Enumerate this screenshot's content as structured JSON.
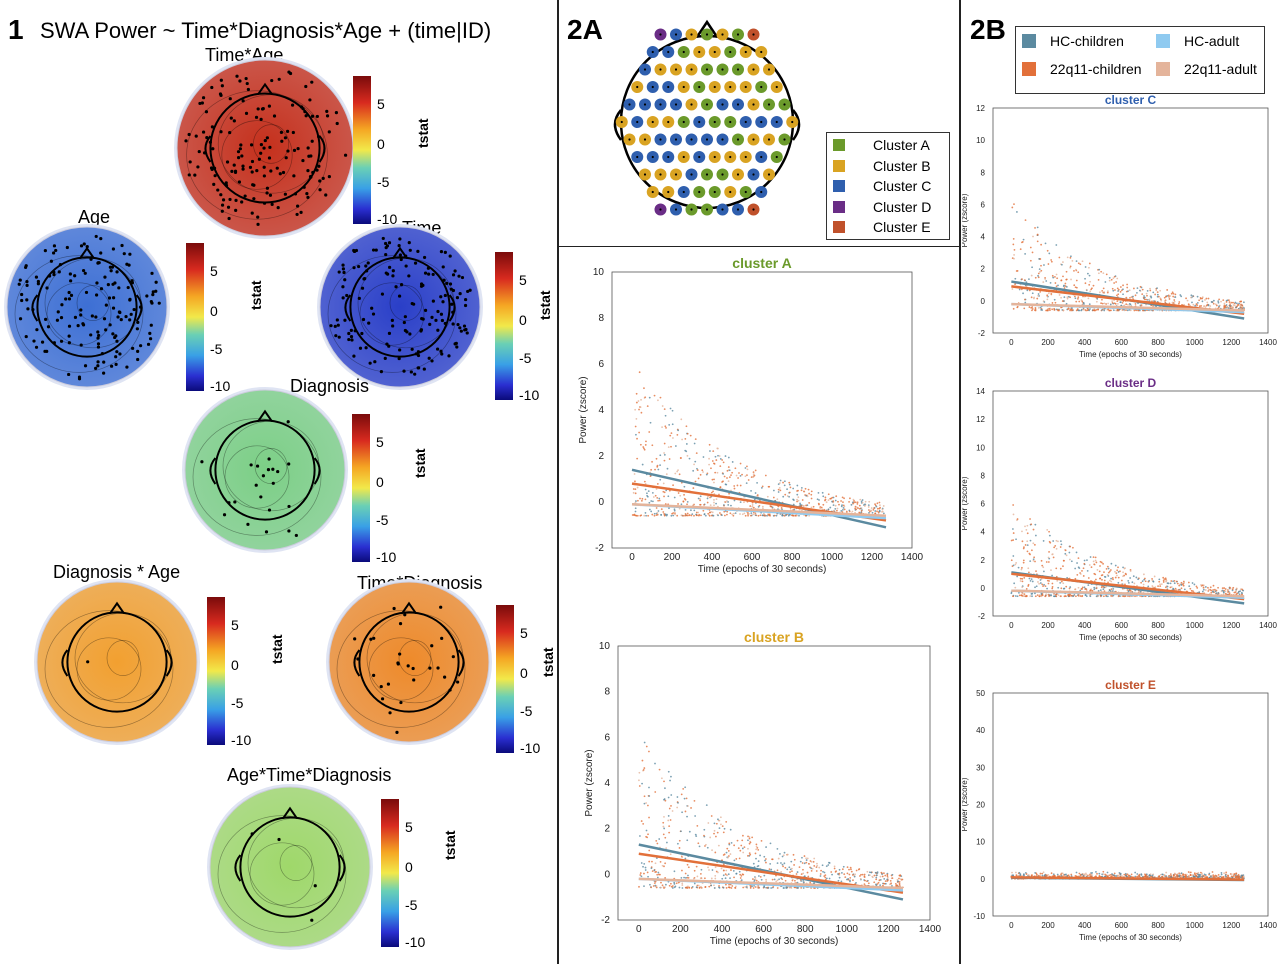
{
  "panel1": {
    "number": "1",
    "title": "SWA Power ~ Time*Diagnosis*Age + (time|ID)",
    "colorbar_label": "tstat",
    "colorbar_ticks": [
      "5",
      "0",
      "-5",
      "-10"
    ],
    "maps": [
      {
        "title": "Time*Age",
        "fill": "#c5301c"
      },
      {
        "title": "Age",
        "fill": "#3d6fd4"
      },
      {
        "title": "Time",
        "fill": "#2a3fc8"
      },
      {
        "title": "Diagnosis",
        "fill": "#7ccf86"
      },
      {
        "title": "Diagnosis * Age",
        "fill": "#f2a030"
      },
      {
        "title": "Time*Diagnosis",
        "fill": "#ee8a2a"
      },
      {
        "title": "Age*Time*Diagnosis",
        "fill": "#9fd86a"
      }
    ]
  },
  "panel2a": {
    "number": "2A",
    "legend": [
      {
        "label": "Cluster A",
        "color": "#6b9a2b"
      },
      {
        "label": "Cluster B",
        "color": "#d9a322"
      },
      {
        "label": "Cluster C",
        "color": "#2f5fae"
      },
      {
        "label": "Cluster D",
        "color": "#6a2d86"
      },
      {
        "label": "Cluster E",
        "color": "#c0512b"
      }
    ]
  },
  "panel2b": {
    "number": "2B",
    "legend": [
      {
        "label": "HC-children",
        "color": "#5b8aa0"
      },
      {
        "label": "HC-adult",
        "color": "#8fcaf0"
      },
      {
        "label": "22q11-children",
        "color": "#e2703a"
      },
      {
        "label": "22q11-adult",
        "color": "#e4b49b"
      }
    ]
  },
  "chart_data": [
    {
      "type": "scatter",
      "title": "cluster A",
      "title_color": "#6b9a2b",
      "xlabel": "Time (epochs of 30 seconds)",
      "ylabel": "Power (zscore)",
      "xlim": [
        -100,
        1400
      ],
      "ylim": [
        -2,
        10
      ],
      "xticks": [
        0,
        200,
        400,
        600,
        800,
        1000,
        1200,
        1400
      ],
      "yticks": [
        -2,
        0,
        2,
        4,
        6,
        8,
        10
      ],
      "trend_lines": [
        {
          "series": "HC-children",
          "color": "#5b8aa0",
          "x": [
            0,
            1270
          ],
          "y": [
            1.4,
            -1.1
          ]
        },
        {
          "series": "22q11-children",
          "color": "#e2703a",
          "x": [
            0,
            1270
          ],
          "y": [
            0.8,
            -0.8
          ]
        },
        {
          "series": "HC-adult",
          "color": "#8fcaf0",
          "x": [
            0,
            1270
          ],
          "y": [
            -0.1,
            -0.7
          ]
        },
        {
          "series": "22q11-adult",
          "color": "#e4b49b",
          "x": [
            0,
            1270
          ],
          "y": [
            -0.1,
            -0.6
          ]
        }
      ]
    },
    {
      "type": "scatter",
      "title": "cluster B",
      "title_color": "#d9a322",
      "xlabel": "Time (epochs of 30 seconds)",
      "ylabel": "Power (zscore)",
      "xlim": [
        -100,
        1400
      ],
      "ylim": [
        -2,
        10
      ],
      "xticks": [
        0,
        200,
        400,
        600,
        800,
        1000,
        1200,
        1400
      ],
      "yticks": [
        -2,
        0,
        2,
        4,
        6,
        8,
        10
      ],
      "trend_lines": [
        {
          "series": "HC-children",
          "color": "#5b8aa0",
          "x": [
            0,
            1270
          ],
          "y": [
            1.3,
            -1.1
          ]
        },
        {
          "series": "22q11-children",
          "color": "#e2703a",
          "x": [
            0,
            1270
          ],
          "y": [
            0.9,
            -0.8
          ]
        },
        {
          "series": "HC-adult",
          "color": "#8fcaf0",
          "x": [
            0,
            1270
          ],
          "y": [
            -0.2,
            -0.7
          ]
        },
        {
          "series": "22q11-adult",
          "color": "#e4b49b",
          "x": [
            0,
            1270
          ],
          "y": [
            -0.2,
            -0.6
          ]
        }
      ]
    },
    {
      "type": "scatter",
      "title": "cluster C",
      "title_color": "#2f5fae",
      "xlabel": "Time (epochs of 30 seconds)",
      "ylabel": "Power (zscore)",
      "xlim": [
        -100,
        1400
      ],
      "ylim": [
        -2,
        12
      ],
      "xticks": [
        0,
        200,
        400,
        600,
        800,
        1000,
        1200,
        1400
      ],
      "yticks": [
        -2,
        0,
        2,
        4,
        6,
        8,
        10,
        12
      ],
      "trend_lines": [
        {
          "series": "HC-children",
          "color": "#5b8aa0",
          "x": [
            0,
            1270
          ],
          "y": [
            1.2,
            -1.1
          ]
        },
        {
          "series": "22q11-children",
          "color": "#e2703a",
          "x": [
            0,
            1270
          ],
          "y": [
            0.9,
            -0.8
          ]
        },
        {
          "series": "HC-adult",
          "color": "#8fcaf0",
          "x": [
            0,
            1270
          ],
          "y": [
            -0.2,
            -0.7
          ]
        },
        {
          "series": "22q11-adult",
          "color": "#e4b49b",
          "x": [
            0,
            1270
          ],
          "y": [
            -0.2,
            -0.6
          ]
        }
      ]
    },
    {
      "type": "scatter",
      "title": "cluster D",
      "title_color": "#6a2d86",
      "xlabel": "Time (epochs of 30 seconds)",
      "ylabel": "Power (zscore)",
      "xlim": [
        -100,
        1400
      ],
      "ylim": [
        -2,
        14
      ],
      "xticks": [
        0,
        200,
        400,
        600,
        800,
        1000,
        1200,
        1400
      ],
      "yticks": [
        -2,
        0,
        2,
        4,
        6,
        8,
        10,
        12,
        14
      ],
      "trend_lines": [
        {
          "series": "HC-children",
          "color": "#5b8aa0",
          "x": [
            0,
            1270
          ],
          "y": [
            1.1,
            -1.1
          ]
        },
        {
          "series": "22q11-children",
          "color": "#e2703a",
          "x": [
            0,
            1270
          ],
          "y": [
            1.0,
            -0.8
          ]
        },
        {
          "series": "HC-adult",
          "color": "#8fcaf0",
          "x": [
            0,
            1270
          ],
          "y": [
            -0.2,
            -0.7
          ]
        },
        {
          "series": "22q11-adult",
          "color": "#e4b49b",
          "x": [
            0,
            1270
          ],
          "y": [
            -0.2,
            -0.6
          ]
        }
      ]
    },
    {
      "type": "scatter",
      "title": "cluster E",
      "title_color": "#c0512b",
      "xlabel": "Time (epochs of 30 seconds)",
      "ylabel": "Power (zscore)",
      "xlim": [
        -100,
        1400
      ],
      "ylim": [
        -10,
        50
      ],
      "xticks": [
        0,
        200,
        400,
        600,
        800,
        1000,
        1200,
        1400
      ],
      "yticks": [
        -10,
        0,
        10,
        20,
        30,
        40,
        50
      ],
      "trend_lines": [
        {
          "series": "HC-children",
          "color": "#5b8aa0",
          "x": [
            0,
            1270
          ],
          "y": [
            0.3,
            -0.3
          ]
        },
        {
          "series": "22q11-children",
          "color": "#e2703a",
          "x": [
            0,
            1270
          ],
          "y": [
            0.4,
            -0.2
          ]
        }
      ]
    }
  ]
}
